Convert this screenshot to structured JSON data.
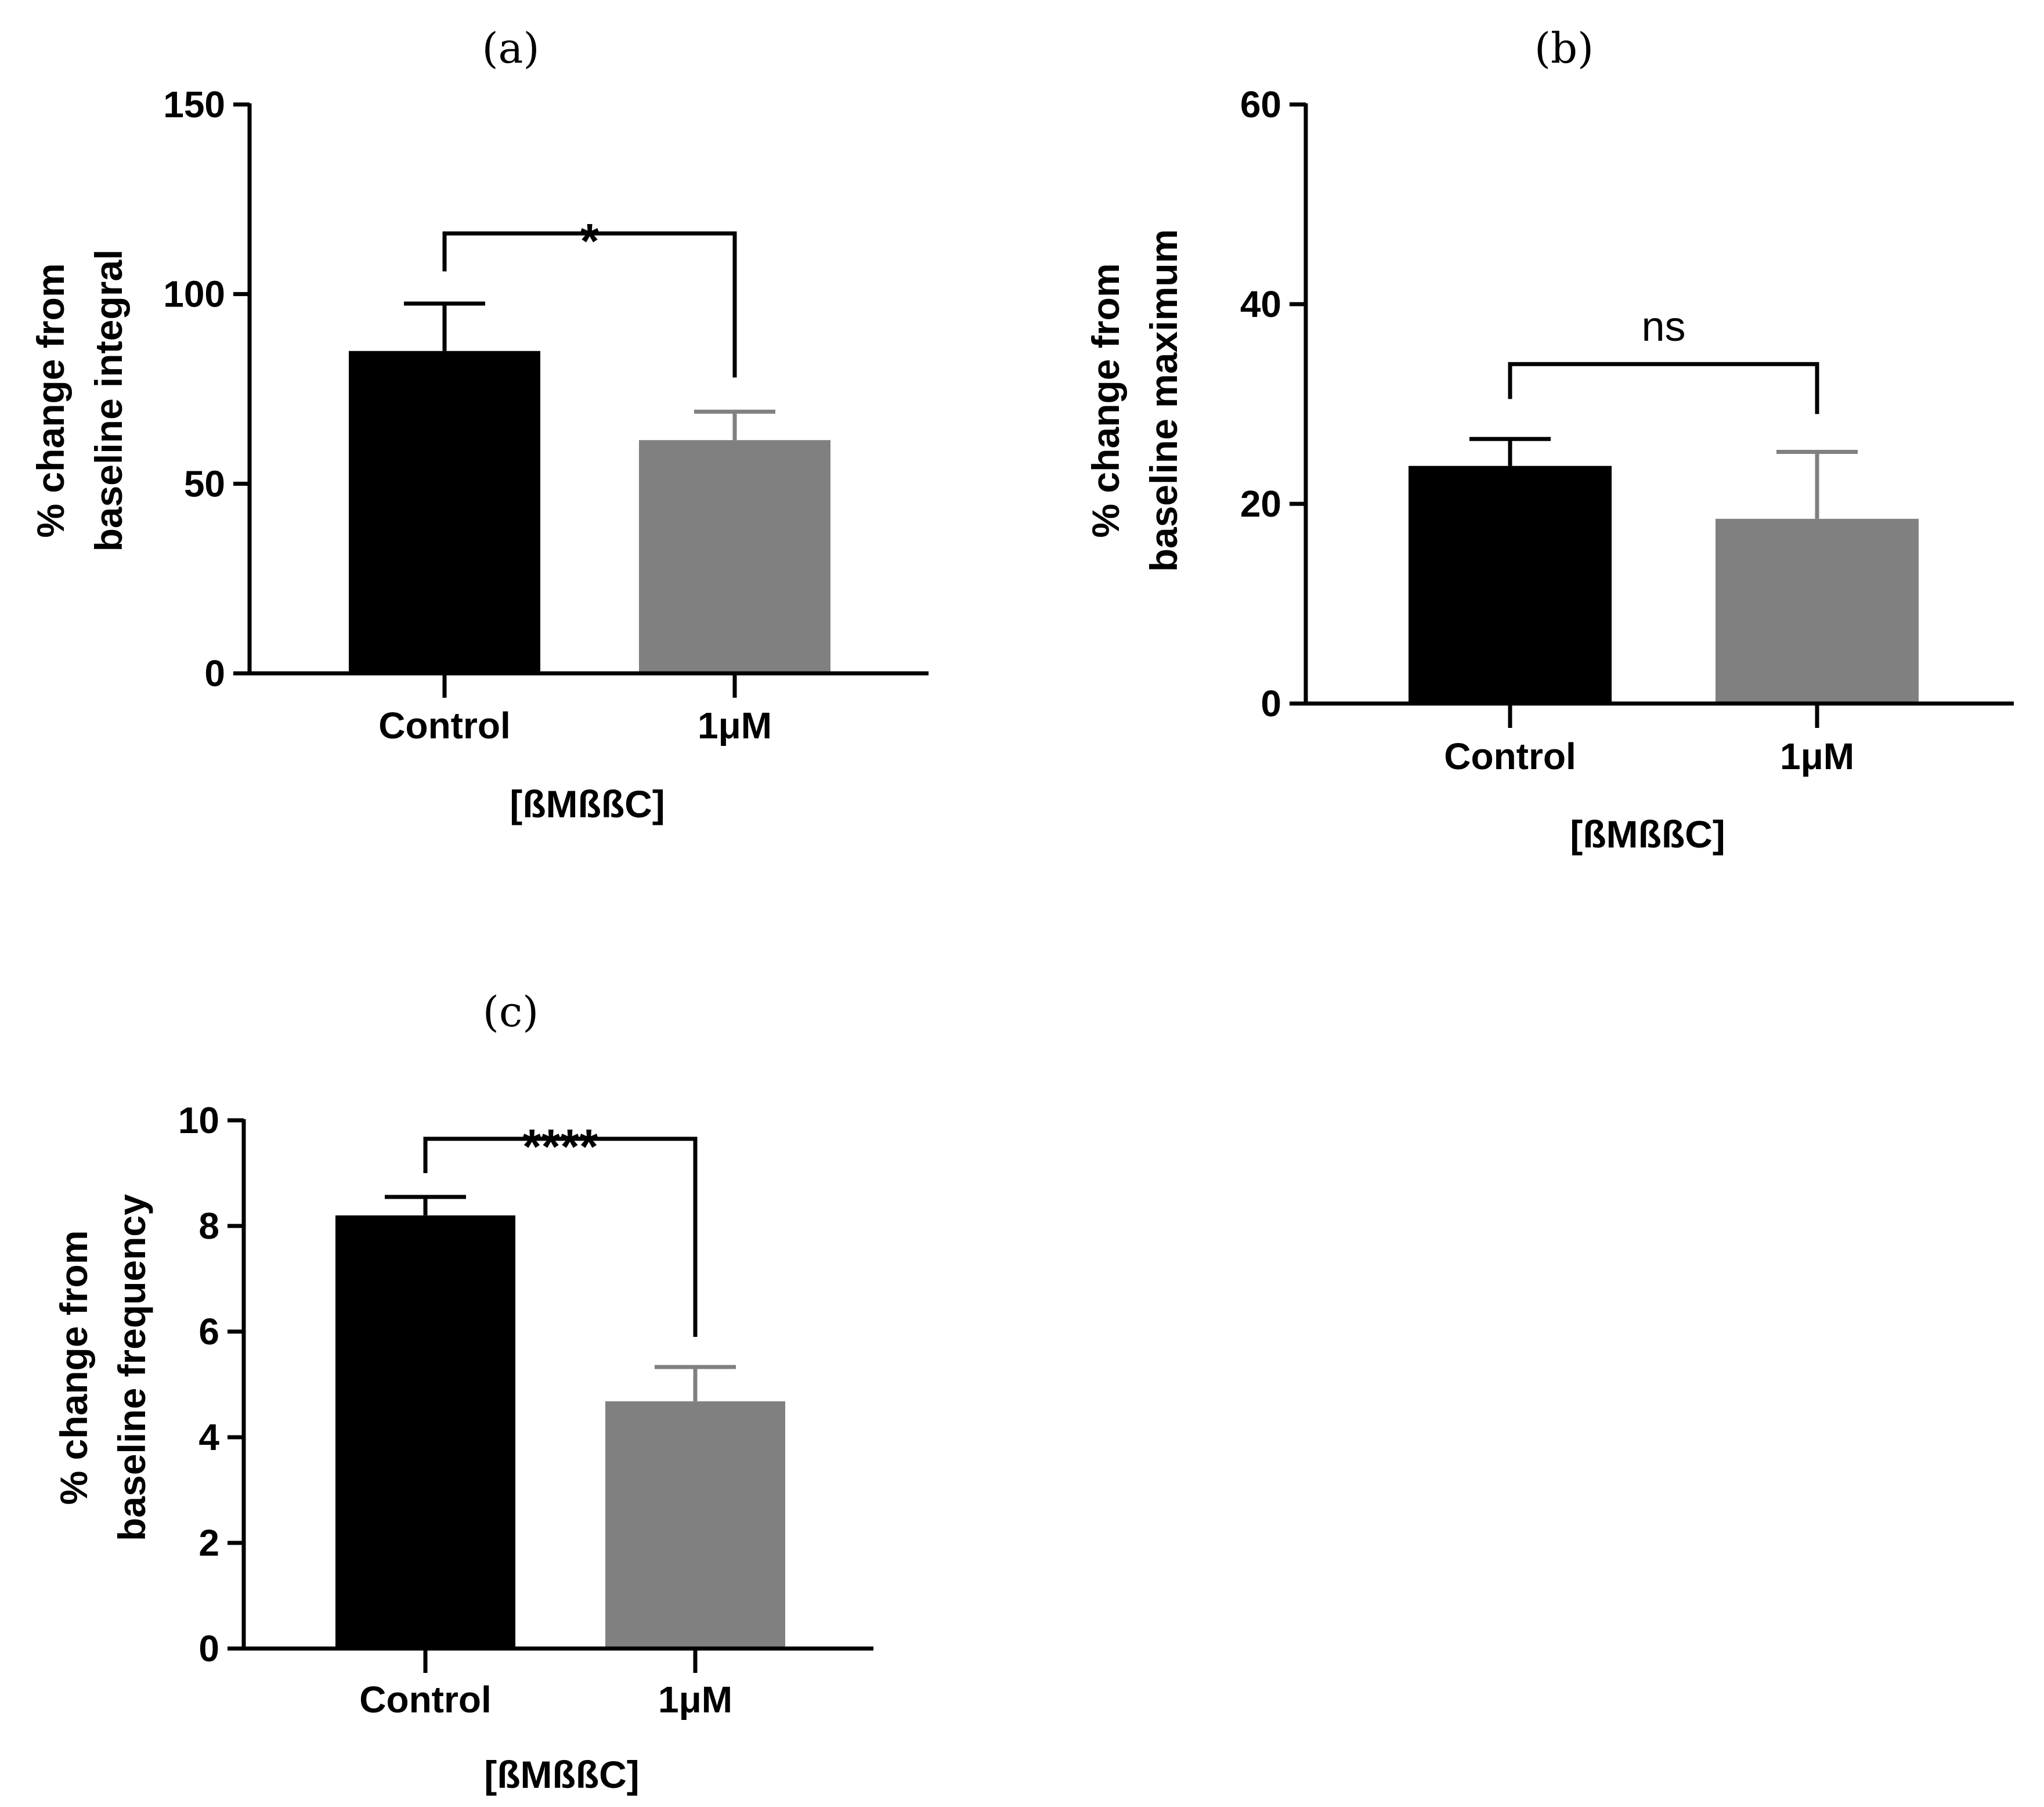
{
  "colors": {
    "control": "#000000",
    "treatment": "#808080",
    "axis": "#000000"
  },
  "chart_data": [
    {
      "panel": "(a)",
      "type": "bar",
      "categories": [
        "Control",
        "1μM"
      ],
      "values": [
        85,
        61.5
      ],
      "errors": [
        12.5,
        7.5
      ],
      "ylabel_lines": [
        "% change from",
        "baseline integral"
      ],
      "xlabel": "[ßMßßC]",
      "ylim": [
        0,
        150
      ],
      "yticks": [
        0,
        50,
        100,
        150
      ],
      "significance": {
        "label": "*",
        "bracket_y": 116,
        "left_drop_y": 106,
        "right_drop_y": 78
      }
    },
    {
      "panel": "(b)",
      "type": "bar",
      "categories": [
        "Control",
        "1μM"
      ],
      "values": [
        23.8,
        18.5
      ],
      "errors": [
        2.7,
        6.7
      ],
      "ylabel_lines": [
        "% change from",
        "baseline maximum"
      ],
      "xlabel": "[ßMßßC]",
      "ylim": [
        0,
        60
      ],
      "yticks": [
        0,
        20,
        40,
        60
      ],
      "significance": {
        "label": "ns",
        "bracket_y": 34,
        "left_drop_y": 30.5,
        "right_drop_y": 29
      }
    },
    {
      "panel": "(c)",
      "type": "bar",
      "categories": [
        "Control",
        "1μM"
      ],
      "values": [
        8.2,
        4.68
      ],
      "errors": [
        0.35,
        0.65
      ],
      "ylabel_lines": [
        "% change from",
        "baseline frequency"
      ],
      "xlabel": "[ßMßßC]",
      "ylim": [
        0,
        10
      ],
      "yticks": [
        0,
        2,
        4,
        6,
        8,
        10
      ],
      "significance": {
        "label": "****",
        "bracket_y": 9.65,
        "left_drop_y": 9.0,
        "right_drop_y": 5.9
      }
    }
  ]
}
